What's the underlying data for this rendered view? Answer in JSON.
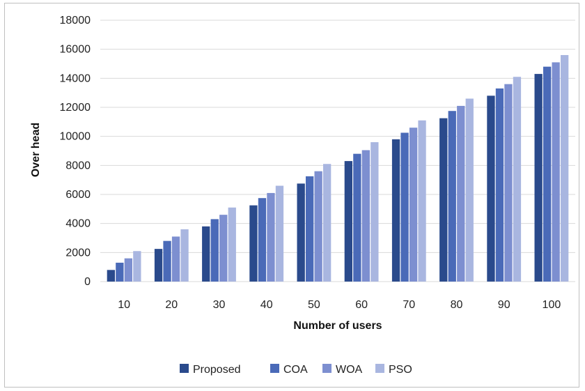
{
  "chart_data": {
    "type": "bar",
    "title": "",
    "xlabel": "Number of users",
    "ylabel": "Over head",
    "ylim": [
      0,
      18000
    ],
    "yticks": [
      0,
      2000,
      4000,
      6000,
      8000,
      10000,
      12000,
      14000,
      16000,
      18000
    ],
    "grid": true,
    "legend_position": "bottom",
    "categories": [
      "10",
      "20",
      "30",
      "40",
      "50",
      "60",
      "70",
      "80",
      "90",
      "100"
    ],
    "series": [
      {
        "name": "Proposed",
        "color": "#2a4a8c",
        "values": [
          800,
          2250,
          3800,
          5250,
          6750,
          8300,
          9800,
          11250,
          12800,
          14300
        ]
      },
      {
        "name": "COA",
        "color": "#4a6ab8",
        "values": [
          1300,
          2800,
          4300,
          5750,
          7250,
          8800,
          10250,
          11750,
          13300,
          14800
        ]
      },
      {
        "name": "WOA",
        "color": "#7d8fd0",
        "values": [
          1600,
          3100,
          4600,
          6100,
          7600,
          9050,
          10600,
          12100,
          13600,
          15100
        ]
      },
      {
        "name": "PSO",
        "color": "#a9b6e0",
        "values": [
          2100,
          3600,
          5100,
          6600,
          8100,
          9600,
          11100,
          12600,
          14100,
          15600
        ]
      }
    ]
  }
}
